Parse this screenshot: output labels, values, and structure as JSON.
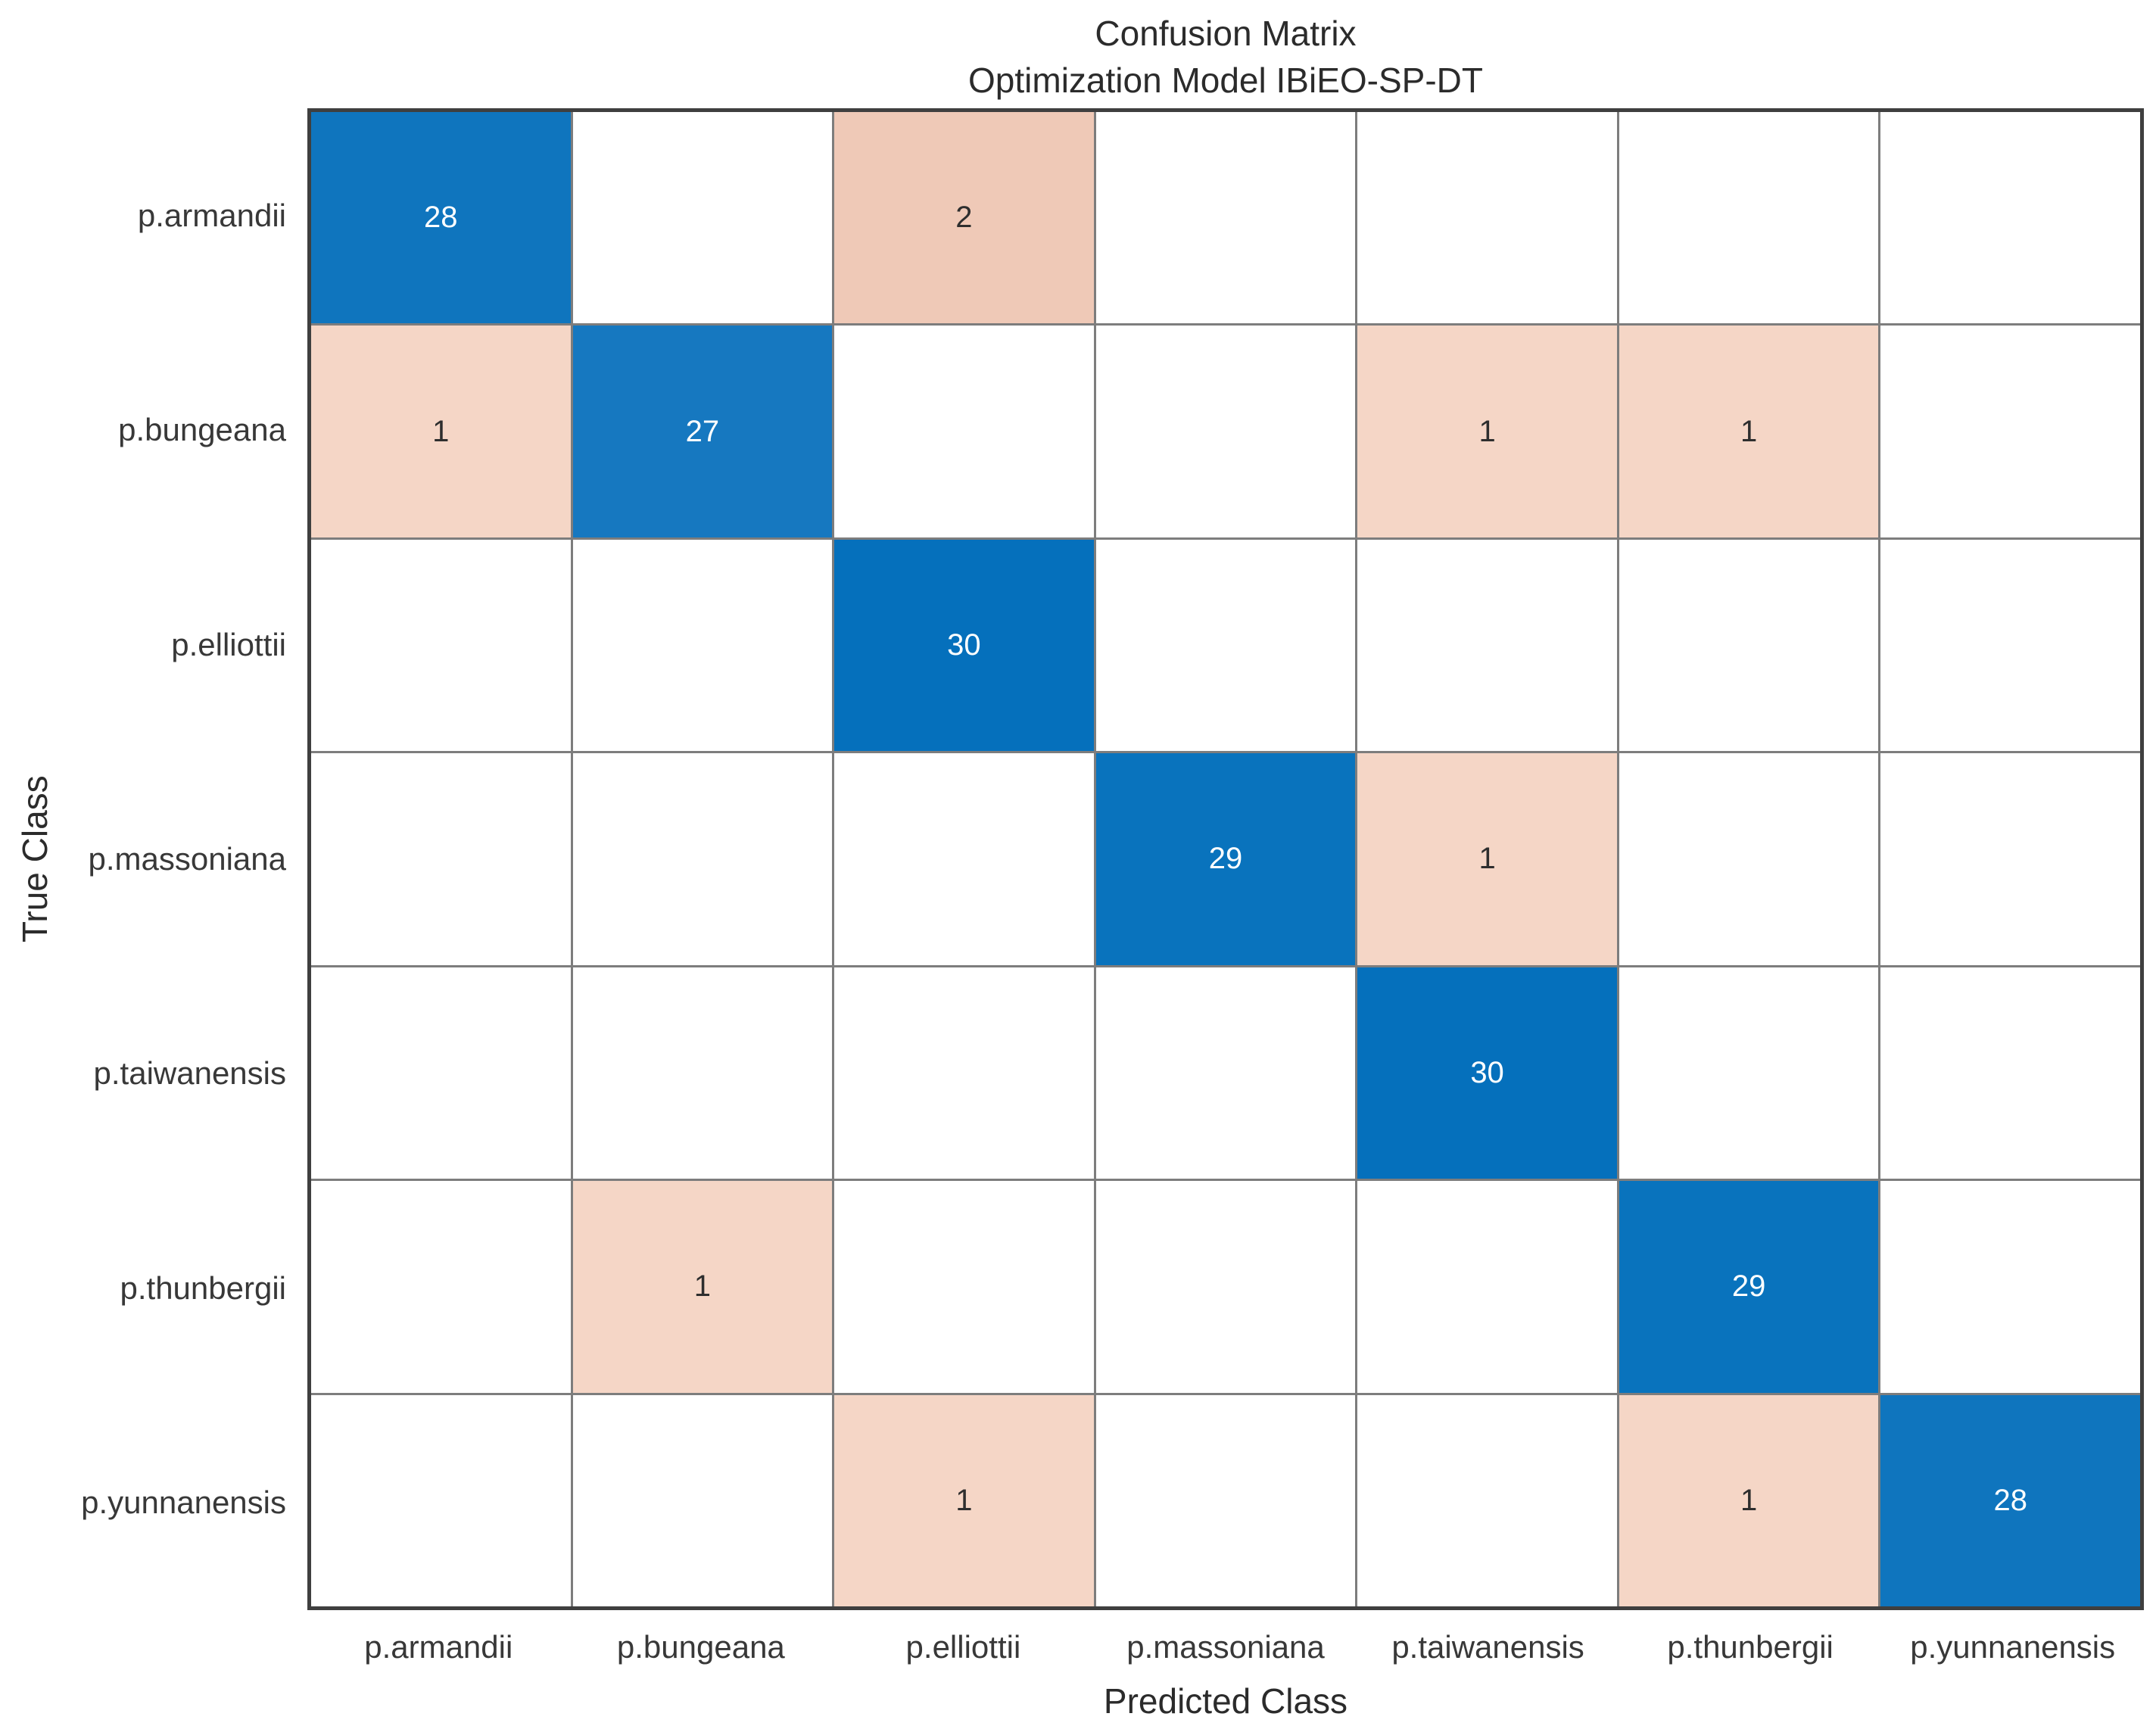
{
  "chart_data": {
    "type": "heatmap",
    "subtype": "confusion-matrix",
    "title": "Confusion Matrix",
    "subtitle": "Optimization Model IBiEO-SP-DT",
    "xlabel": "Predicted Class",
    "ylabel": "True Class",
    "classes": [
      "p.armandii",
      "p.bungeana",
      "p.elliottii",
      "p.massoniana",
      "p.taiwanensis",
      "p.thunbergii",
      "p.yunnanensis"
    ],
    "matrix": [
      [
        28,
        0,
        2,
        0,
        0,
        0,
        0
      ],
      [
        1,
        27,
        0,
        0,
        1,
        1,
        0
      ],
      [
        0,
        0,
        30,
        0,
        0,
        0,
        0
      ],
      [
        0,
        0,
        0,
        29,
        1,
        0,
        0
      ],
      [
        0,
        0,
        0,
        0,
        30,
        0,
        0
      ],
      [
        0,
        1,
        0,
        0,
        0,
        29,
        0
      ],
      [
        0,
        0,
        1,
        0,
        0,
        1,
        28
      ]
    ],
    "grid": "on",
    "legend": "none",
    "colors": {
      "diagonal_base": "#0a72bd",
      "offdiagonal_base": "#f2d0c0",
      "diagonal_shades": {
        "27": "#1678c0",
        "28": "#0f75be",
        "29": "#0973bd",
        "30": "#0570bc"
      },
      "offdiagonal_shades": {
        "1": "#f5d6c6",
        "2": "#efc9b7"
      },
      "diagonal_text": "#ffffff",
      "offdiagonal_text": "#2e2e2e",
      "empty_cell": "#ffffff",
      "grid_line": "#7d7d7d",
      "axes_border": "#3f3f3f"
    }
  }
}
